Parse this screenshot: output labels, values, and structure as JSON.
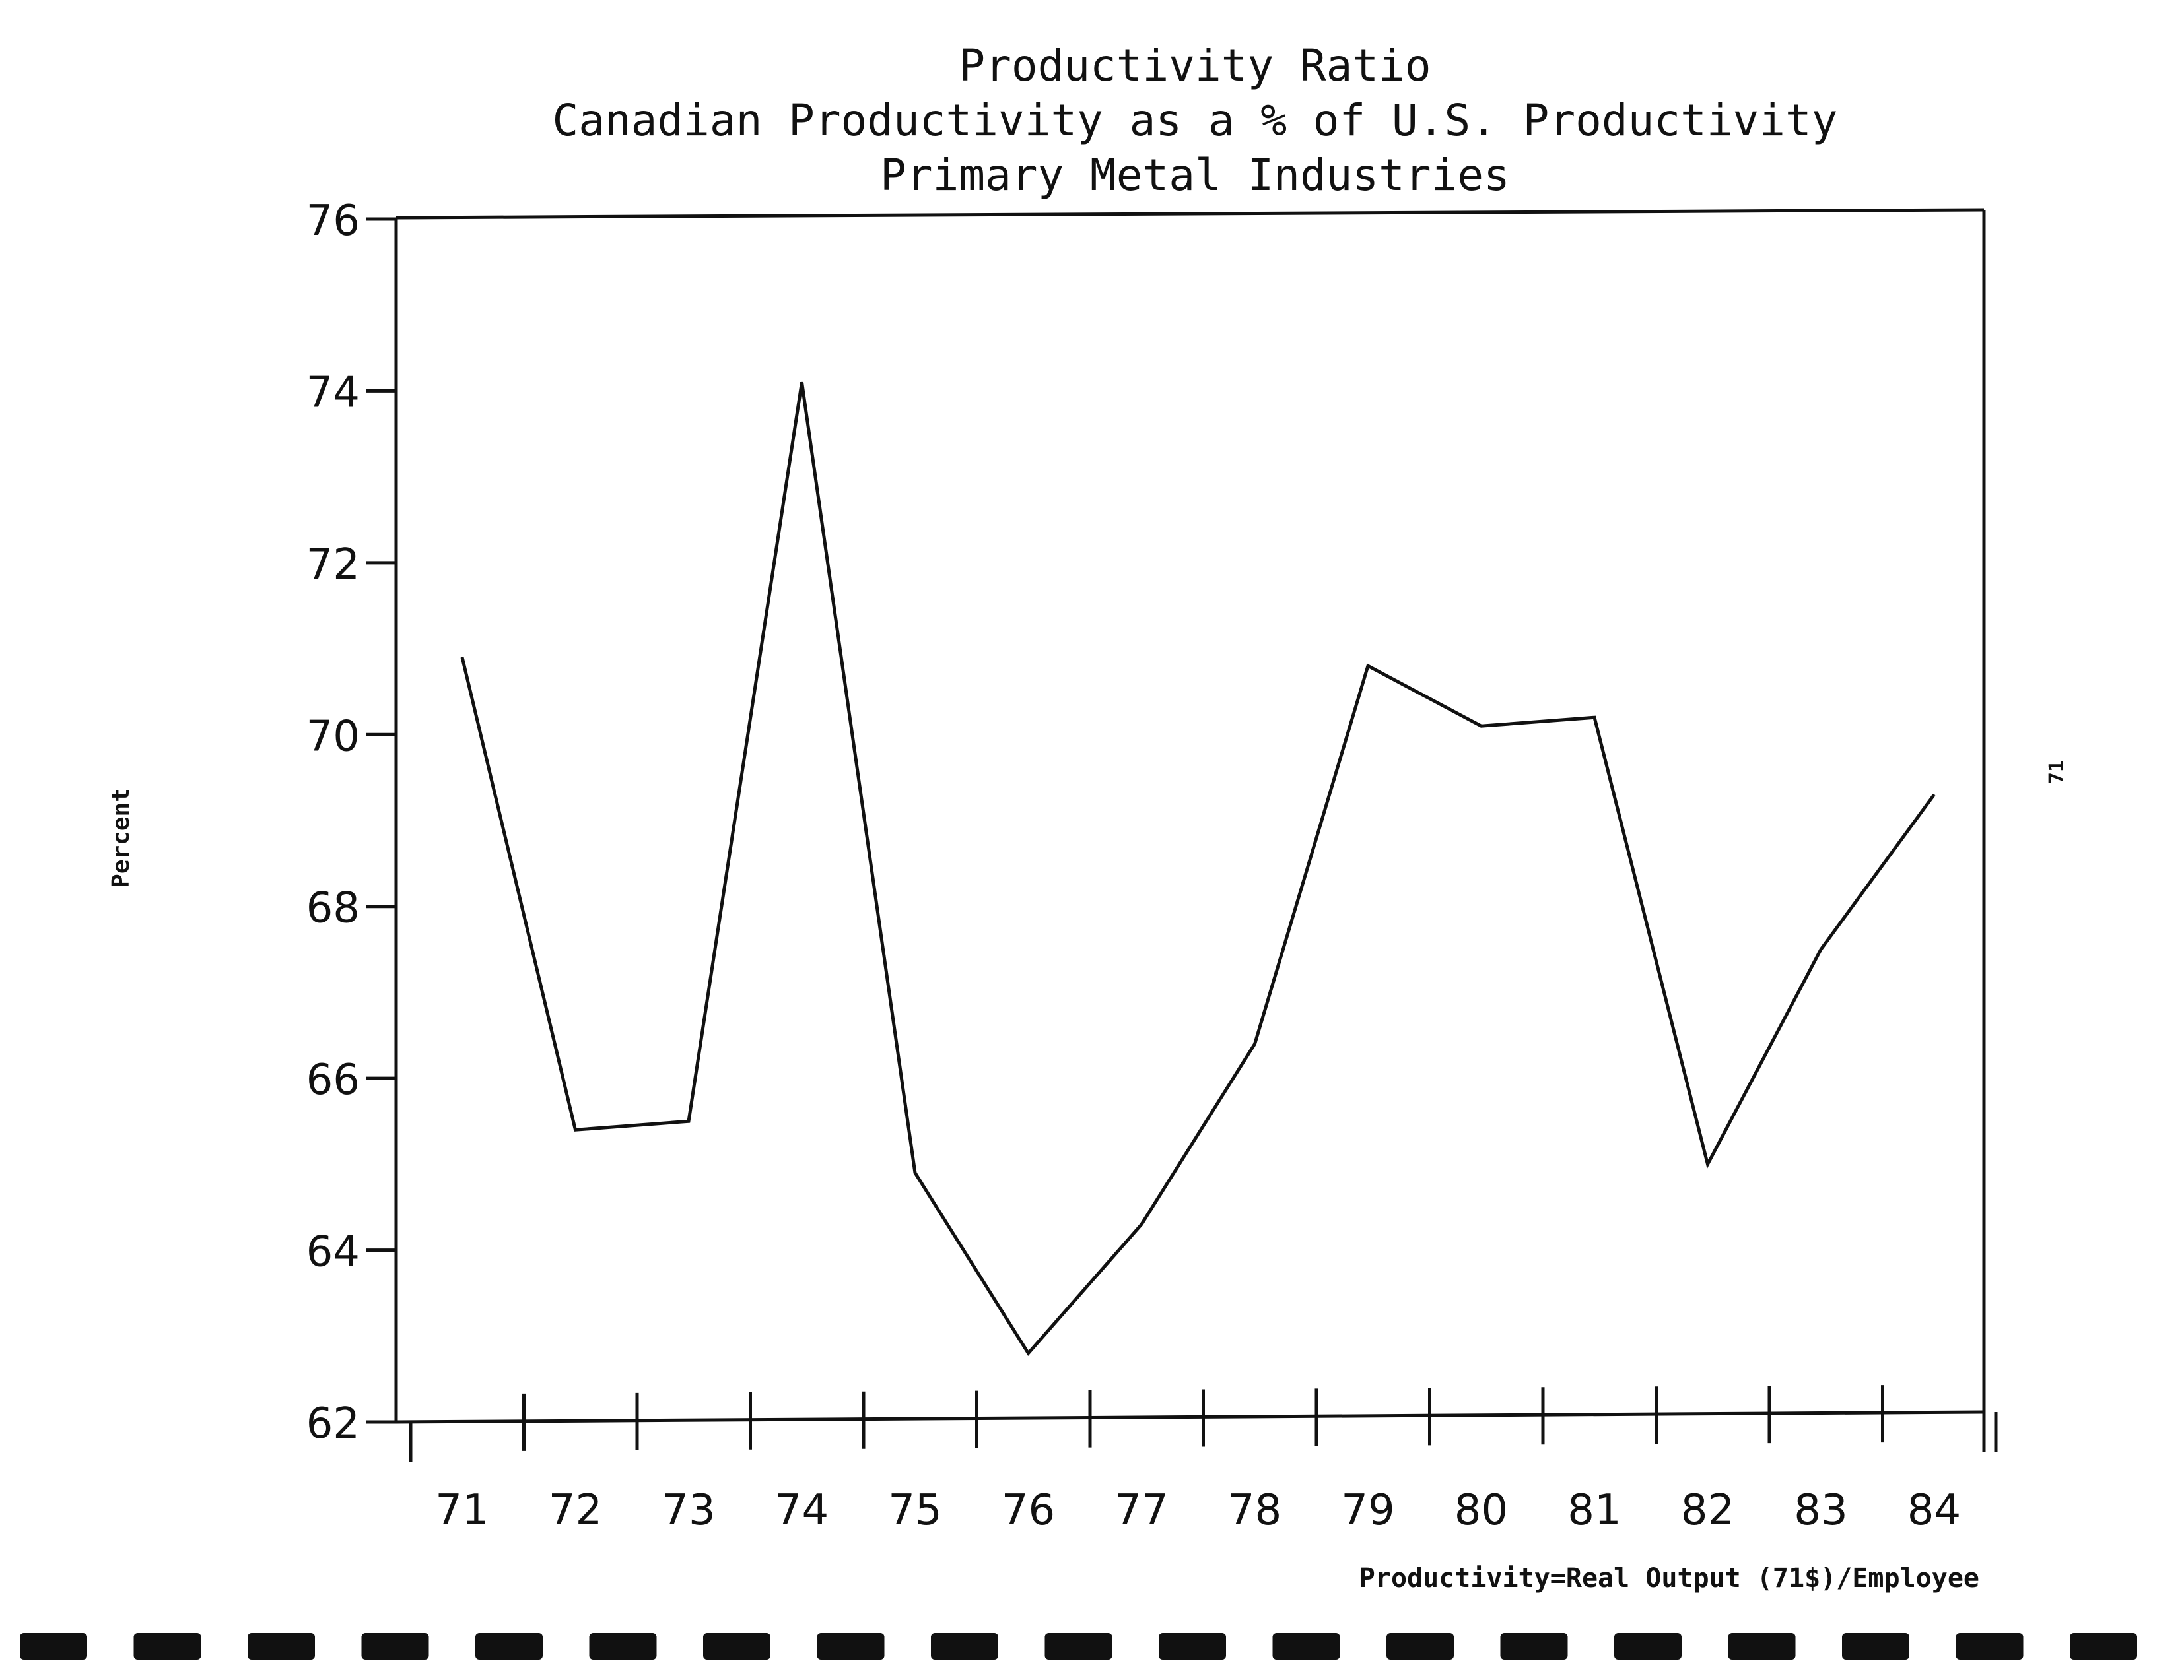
{
  "chart_data": {
    "type": "line",
    "title": "Productivity Ratio",
    "subtitle": "Canadian Productivity as a % of U.S. Productivity",
    "subtitle2": "Primary Metal Industries",
    "ylabel": "Percent",
    "xlabel": "",
    "footnote": "Productivity=Real Output (71$)/Employee",
    "side_text": "71",
    "categories": [
      "71",
      "72",
      "73",
      "74",
      "75",
      "76",
      "77",
      "78",
      "79",
      "80",
      "81",
      "82",
      "83",
      "84"
    ],
    "series": [
      {
        "values": [
          70.9,
          65.4,
          65.5,
          74.1,
          64.9,
          62.8,
          64.3,
          66.4,
          70.8,
          70.1,
          70.2,
          65.0,
          67.5,
          69.3
        ]
      }
    ],
    "ylim": [
      62,
      76
    ],
    "yticks": [
      "62",
      "64",
      "66",
      "68",
      "70",
      "72",
      "74",
      "76"
    ],
    "grid": false,
    "legend": "none"
  }
}
